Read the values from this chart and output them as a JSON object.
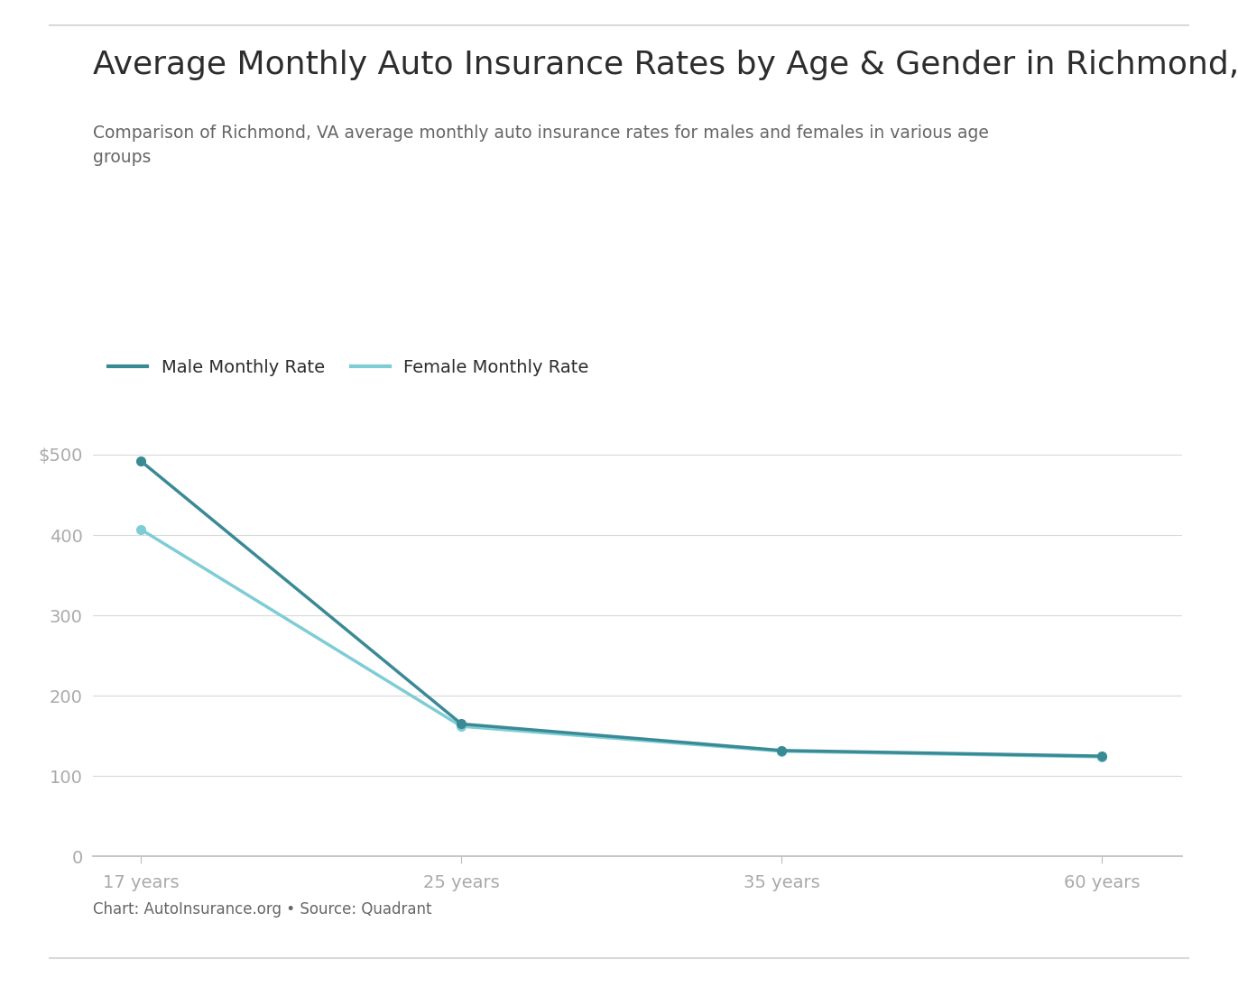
{
  "title": "Average Monthly Auto Insurance Rates by Age & Gender in Richmond, VA",
  "subtitle": "Comparison of Richmond, VA average monthly auto insurance rates for males and females in various age\ngroups",
  "ages": [
    "17 years",
    "25 years",
    "35 years",
    "60 years"
  ],
  "x_positions": [
    0,
    1,
    2,
    3
  ],
  "male_rates": [
    492,
    165,
    132,
    125
  ],
  "female_rates": [
    407,
    162,
    131,
    124
  ],
  "male_color": "#3a8a96",
  "female_color": "#7ecdd6",
  "male_label": "Male Monthly Rate",
  "female_label": "Female Monthly Rate",
  "yticks": [
    0,
    100,
    200,
    300,
    400,
    500
  ],
  "ytick_labels": [
    "0",
    "100",
    "200",
    "300",
    "400",
    "$500"
  ],
  "ylim": [
    0,
    570
  ],
  "background_color": "#ffffff",
  "grid_color": "#d9d9d9",
  "axis_color": "#bbbbbb",
  "title_color": "#2d2d2d",
  "subtitle_color": "#666666",
  "tick_color": "#aaaaaa",
  "footnote": "Chart: AutoInsurance.org • Source: Quadrant",
  "title_fontsize": 26,
  "subtitle_fontsize": 13.5,
  "legend_fontsize": 14,
  "tick_fontsize": 14,
  "footnote_fontsize": 12,
  "line_width": 2.5,
  "marker_size": 7
}
